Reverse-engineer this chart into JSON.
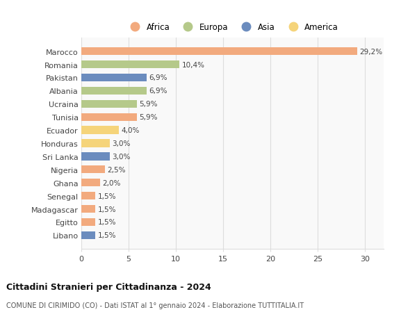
{
  "countries": [
    "Marocco",
    "Romania",
    "Pakistan",
    "Albania",
    "Ucraina",
    "Tunisia",
    "Ecuador",
    "Honduras",
    "Sri Lanka",
    "Nigeria",
    "Ghana",
    "Senegal",
    "Madagascar",
    "Egitto",
    "Libano"
  ],
  "values": [
    29.2,
    10.4,
    6.9,
    6.9,
    5.9,
    5.9,
    4.0,
    3.0,
    3.0,
    2.5,
    2.0,
    1.5,
    1.5,
    1.5,
    1.5
  ],
  "labels": [
    "29,2%",
    "10,4%",
    "6,9%",
    "6,9%",
    "5,9%",
    "5,9%",
    "4,0%",
    "3,0%",
    "3,0%",
    "2,5%",
    "2,0%",
    "1,5%",
    "1,5%",
    "1,5%",
    "1,5%"
  ],
  "continents": [
    "Africa",
    "Europa",
    "Asia",
    "Europa",
    "Europa",
    "Africa",
    "America",
    "America",
    "Asia",
    "Africa",
    "Africa",
    "Africa",
    "Africa",
    "Africa",
    "Asia"
  ],
  "colors": {
    "Africa": "#F2AA7E",
    "Europa": "#B5C98A",
    "Asia": "#6B8CBE",
    "America": "#F5D47A"
  },
  "legend_order": [
    "Africa",
    "Europa",
    "Asia",
    "America"
  ],
  "title": "Cittadini Stranieri per Cittadinanza - 2024",
  "subtitle": "COMUNE DI CIRIMIDO (CO) - Dati ISTAT al 1° gennaio 2024 - Elaborazione TUTTITALIA.IT",
  "xlim": [
    0,
    32
  ],
  "xticks": [
    0,
    5,
    10,
    15,
    20,
    25,
    30
  ],
  "background_color": "#ffffff",
  "plot_background": "#f9f9f9",
  "grid_color": "#dddddd"
}
